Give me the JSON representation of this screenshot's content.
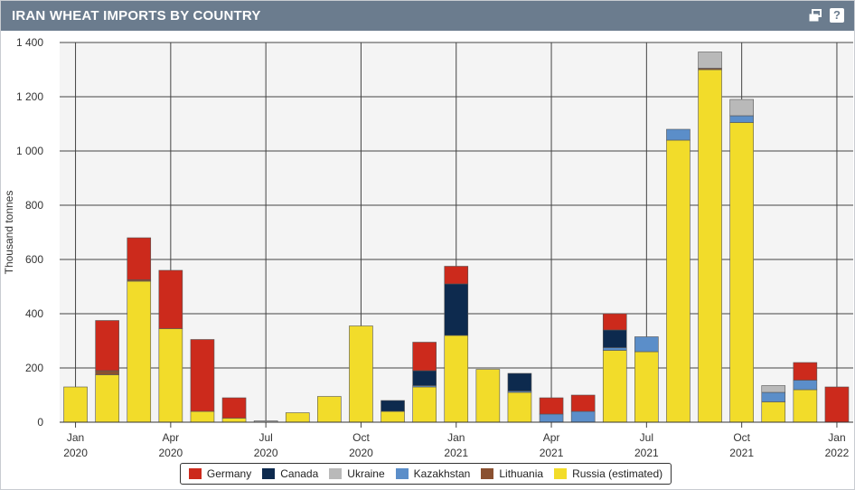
{
  "window": {
    "title": "IRAN WHEAT IMPORTS BY COUNTRY",
    "restore_icon": "restore-window-icon",
    "help_icon": "help-icon",
    "help_label": "?"
  },
  "chart_data": {
    "type": "bar",
    "stacked": true,
    "ylabel": "Thousand tonnes",
    "ylim": [
      0,
      1400
    ],
    "yticks": [
      0,
      200,
      400,
      600,
      800,
      1000,
      1200,
      1400
    ],
    "ytick_labels": [
      "0",
      "200",
      "400",
      "600",
      "800",
      "1 000",
      "1 200",
      "1 400"
    ],
    "categories": [
      "Jan 2020",
      "Feb 2020",
      "Mar 2020",
      "Apr 2020",
      "May 2020",
      "Jun 2020",
      "Jul 2020",
      "Aug 2020",
      "Sep 2020",
      "Oct 2020",
      "Nov 2020",
      "Dec 2020",
      "Jan 2021",
      "Feb 2021",
      "Mar 2021",
      "Apr 2021",
      "May 2021",
      "Jun 2021",
      "Jul 2021",
      "Aug 2021",
      "Sep 2021",
      "Oct 2021",
      "Nov 2021",
      "Dec 2021",
      "Jan 2022"
    ],
    "xticks": [
      {
        "line1": "Jan",
        "line2": "2020",
        "index": 0
      },
      {
        "line1": "Apr",
        "line2": "2020",
        "index": 3
      },
      {
        "line1": "Jul",
        "line2": "2020",
        "index": 6
      },
      {
        "line1": "Oct",
        "line2": "2020",
        "index": 9
      },
      {
        "line1": "Jan",
        "line2": "2021",
        "index": 12
      },
      {
        "line1": "Apr",
        "line2": "2021",
        "index": 15
      },
      {
        "line1": "Jul",
        "line2": "2021",
        "index": 18
      },
      {
        "line1": "Oct",
        "line2": "2021",
        "index": 21
      },
      {
        "line1": "Jan",
        "line2": "2022",
        "index": 24
      }
    ],
    "grid": true,
    "legend_position": "bottom",
    "series": [
      {
        "name": "Russia (estimated)",
        "color": "#f2dc2a",
        "values": [
          130,
          175,
          520,
          345,
          40,
          15,
          0,
          35,
          95,
          355,
          40,
          130,
          320,
          195,
          110,
          0,
          0,
          265,
          260,
          1040,
          1300,
          1105,
          75,
          120,
          0
        ]
      },
      {
        "name": "Lithuania",
        "color": "#8a5030",
        "values": [
          0,
          15,
          5,
          0,
          0,
          0,
          0,
          0,
          0,
          0,
          0,
          0,
          0,
          0,
          0,
          0,
          0,
          0,
          0,
          0,
          5,
          0,
          0,
          0,
          0
        ]
      },
      {
        "name": "Kazakhstan",
        "color": "#5b8ec9",
        "values": [
          0,
          0,
          0,
          0,
          0,
          0,
          0,
          0,
          0,
          0,
          0,
          5,
          0,
          0,
          5,
          30,
          40,
          10,
          55,
          40,
          0,
          25,
          35,
          35,
          0
        ]
      },
      {
        "name": "Ukraine",
        "color": "#b9b9b9",
        "values": [
          0,
          0,
          0,
          0,
          0,
          0,
          5,
          0,
          0,
          0,
          0,
          0,
          0,
          0,
          0,
          0,
          0,
          0,
          0,
          0,
          60,
          60,
          25,
          0,
          0
        ]
      },
      {
        "name": "Canada",
        "color": "#0d2a4e",
        "values": [
          0,
          0,
          0,
          0,
          0,
          0,
          0,
          0,
          0,
          0,
          40,
          55,
          190,
          0,
          65,
          0,
          0,
          65,
          0,
          0,
          0,
          0,
          0,
          0,
          0
        ]
      },
      {
        "name": "Germany",
        "color": "#cc2a1c",
        "values": [
          0,
          185,
          155,
          215,
          265,
          75,
          0,
          0,
          0,
          0,
          0,
          105,
          65,
          0,
          0,
          60,
          60,
          60,
          0,
          0,
          0,
          0,
          0,
          65,
          130
        ]
      }
    ],
    "legend_order": [
      "Germany",
      "Canada",
      "Ukraine",
      "Kazakhstan",
      "Lithuania",
      "Russia (estimated)"
    ]
  }
}
